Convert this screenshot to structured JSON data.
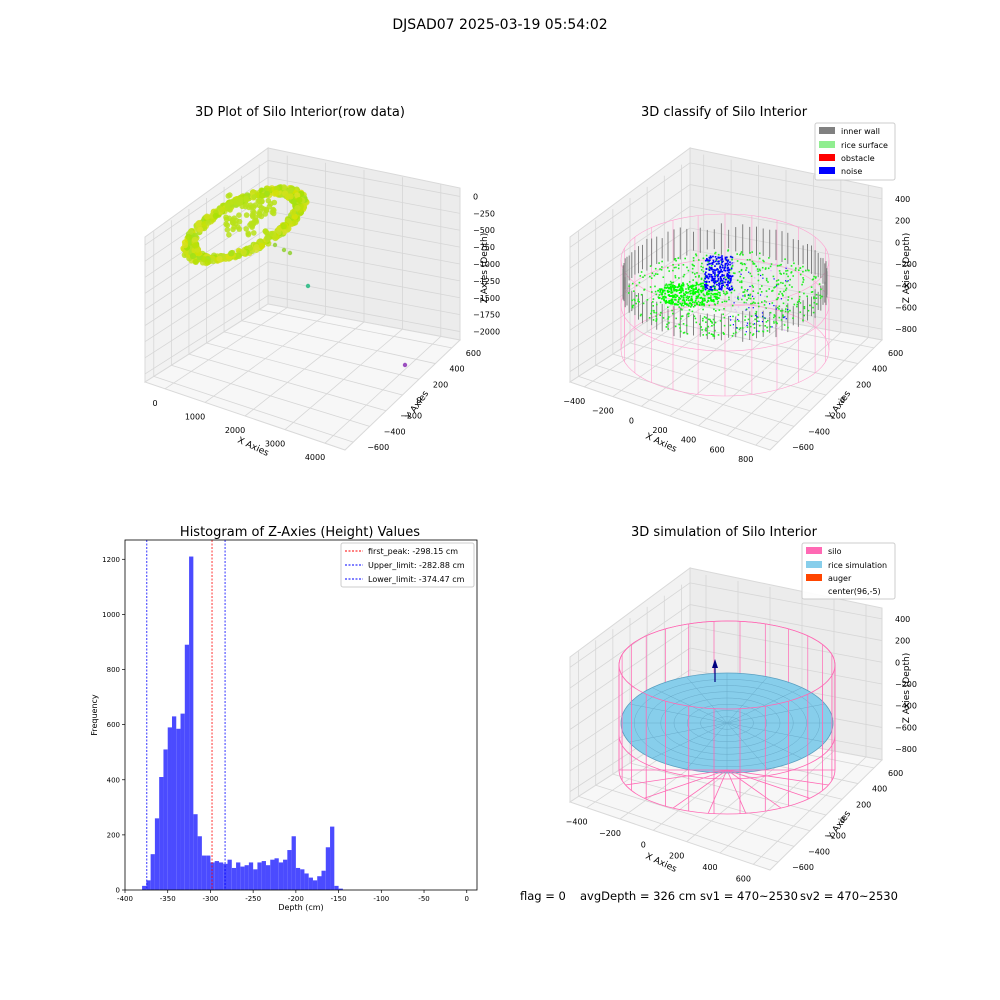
{
  "suptitle": "DJSAD07 2025-03-19 05:54:02",
  "footer": {
    "flag": "flag = 0",
    "avg_depth": "avgDepth = 326 cm",
    "sv1": "sv1 = 470~2530",
    "sv2": "sv2 = 470~2530"
  },
  "colors": {
    "inner_wall": "#808080",
    "rice_surface": "#90ee90",
    "obstacle": "#ff0000",
    "noise": "#0000ff",
    "silo": "#ff69b4",
    "rice_simulation": "#87ceeb",
    "auger": "#ff4500",
    "histogram_bar": "#4b4bff"
  },
  "chart_data": [
    {
      "type": "scatter3d",
      "title": "3D Plot of Silo Interior(row data)",
      "xlabel": "X Axies",
      "ylabel": "Y Axies",
      "zlabel": "Z Axies (Depth)",
      "xticks": [
        "0",
        "1000",
        "2000",
        "3000",
        "4000"
      ],
      "yticks": [
        "−600",
        "−400",
        "−200",
        "0",
        "200",
        "400",
        "600"
      ],
      "zticks": [
        "−2000",
        "−1750",
        "−1500",
        "−1250",
        "−1000",
        "−750",
        "−500",
        "−250",
        "0"
      ],
      "xlim": [
        -500,
        4200
      ],
      "ylim": [
        -700,
        700
      ],
      "zlim": [
        -2050,
        100
      ],
      "outliers": [
        {
          "x": 600,
          "y": 200,
          "z": -1150
        },
        {
          "x": 3800,
          "y": 200,
          "z": -1850
        }
      ]
    },
    {
      "type": "scatter3d",
      "title": "3D classify of Silo Interior",
      "xlabel": "X Axies",
      "ylabel": "Y Axies",
      "zlabel": "Z Axies (Depth)",
      "xticks": [
        "−400",
        "−200",
        "0",
        "200",
        "400",
        "600",
        "800"
      ],
      "yticks": [
        "−600",
        "−400",
        "−200",
        "0",
        "200",
        "400",
        "600"
      ],
      "zticks": [
        "−800",
        "−600",
        "−400",
        "−200",
        "0",
        "200",
        "400"
      ],
      "xlim": [
        -500,
        850
      ],
      "ylim": [
        -700,
        700
      ],
      "zlim": [
        -900,
        450
      ],
      "legend": [
        "inner wall",
        "rice surface",
        "obstacle",
        "noise"
      ],
      "legend_position": "top-right"
    },
    {
      "type": "bar",
      "title": "Histogram of Z-Axies (Height) Values",
      "xlabel": "Depth (cm)",
      "ylabel": "Frequency",
      "xticks": [
        -400,
        -350,
        -300,
        -250,
        -200,
        -150,
        -100,
        -50,
        0
      ],
      "yticks": [
        0,
        200,
        400,
        600,
        800,
        1000,
        1200
      ],
      "xlim": [
        -400,
        12
      ],
      "ylim": [
        0,
        1270
      ],
      "bin_start": -380,
      "bin_width": 5,
      "values": [
        15,
        35,
        130,
        260,
        410,
        510,
        590,
        630,
        585,
        640,
        890,
        1210,
        275,
        195,
        125,
        125,
        100,
        105,
        100,
        95,
        110,
        80,
        100,
        85,
        90,
        100,
        75,
        100,
        105,
        90,
        110,
        115,
        100,
        110,
        145,
        195,
        80,
        75,
        60,
        45,
        35,
        50,
        70,
        155,
        230,
        15,
        5
      ],
      "vlines": [
        {
          "label": "first_peak: -298.15 cm",
          "x": -298.15,
          "color": "#ff0000"
        },
        {
          "label": "Upper_limit: -282.88 cm",
          "x": -282.88,
          "color": "#0000ff"
        },
        {
          "label": "Lower_limit: -374.47 cm",
          "x": -374.47,
          "color": "#0000ff"
        }
      ],
      "legend_position": "top-right"
    },
    {
      "type": "surface3d",
      "title": "3D simulation of Silo Interior",
      "xlabel": "X Axies",
      "ylabel": "Y Axies",
      "zlabel": "Z Axies (Depth)",
      "xticks": [
        "−400",
        "−200",
        "0",
        "200",
        "400",
        "600"
      ],
      "yticks": [
        "−600",
        "−400",
        "−200",
        "0",
        "200",
        "400",
        "600"
      ],
      "zticks": [
        "−800",
        "−600",
        "−400",
        "−200",
        "0",
        "200",
        "400"
      ],
      "xlim": [
        -550,
        750
      ],
      "ylim": [
        -700,
        700
      ],
      "zlim": [
        -900,
        450
      ],
      "legend": [
        "silo",
        "rice simulation",
        "auger",
        "center(96,-5)"
      ],
      "legend_position": "top-right"
    }
  ]
}
